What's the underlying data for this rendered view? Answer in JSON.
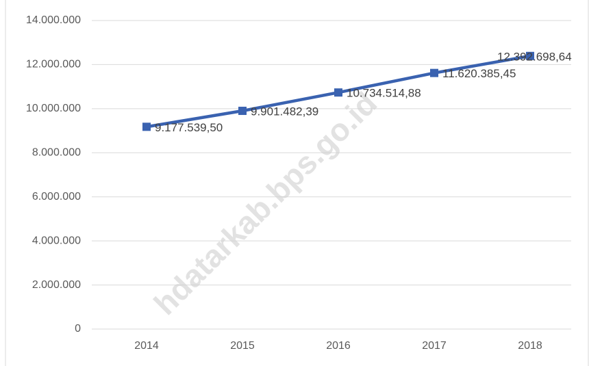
{
  "chart_data": {
    "type": "line",
    "categories": [
      "2014",
      "2015",
      "2016",
      "2017",
      "2018"
    ],
    "series": [
      {
        "color": "#3a62b0",
        "values": [
          9177539.5,
          9901482.39,
          10734514.88,
          11620385.45,
          12392698.64
        ],
        "value_labels": [
          "9.177.539,50",
          "9.901.482,39",
          "10.734.514,88",
          "11.620.385,45",
          "12.392.698,64"
        ]
      }
    ],
    "ylim": [
      0,
      14000000
    ],
    "yticks": [
      0,
      {
        "value": 2000000,
        "label": "2.000.000"
      },
      {
        "value": 4000000,
        "label": "4.000.000"
      },
      {
        "value": 6000000,
        "label": "6.000.000"
      },
      {
        "value": 8000000,
        "label": "8.000.000"
      },
      {
        "value": 10000000,
        "label": "10.000.000"
      },
      {
        "value": 12000000,
        "label": "12.000.000"
      },
      {
        "value": 14000000,
        "label": "14.000.000"
      }
    ],
    "grid": true,
    "watermark": "hdatarkab.bps.go.id"
  }
}
